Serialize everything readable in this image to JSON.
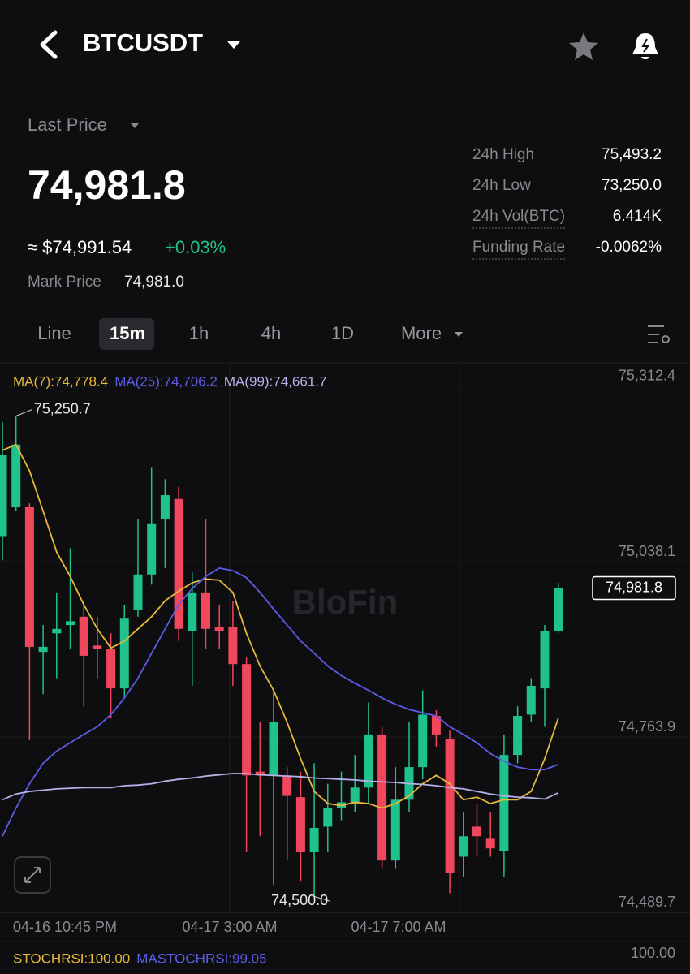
{
  "header": {
    "symbol": "BTCUSDT"
  },
  "price_panel": {
    "last_price_label": "Last Price",
    "last_price": "74,981.8",
    "usd_price": "≈ $74,991.54",
    "change": "+0.03%",
    "mark_price_label": "Mark Price",
    "mark_price": "74,981.0",
    "stats": [
      {
        "label": "24h High",
        "value": "75,493.2"
      },
      {
        "label": "24h Low",
        "value": "73,250.0"
      },
      {
        "label": "24h Vol(BTC)",
        "value": "6.414K"
      },
      {
        "label": "Funding Rate",
        "value": "-0.0062%"
      }
    ]
  },
  "tabs": [
    "Line",
    "15m",
    "1h",
    "4h",
    "1D",
    "More"
  ],
  "watermark": "BloFin",
  "chart_data": {
    "type": "candlestick",
    "up_color": "#1fc28b",
    "down_color": "#f0475c",
    "open": [
      75063,
      75108,
      75108,
      74882,
      74911,
      74924,
      74937,
      74892,
      74886,
      74825,
      74947,
      75003,
      75089,
      75121,
      74914,
      74975,
      74921,
      74921,
      74863,
      74695,
      74689,
      74689,
      74655,
      74569,
      74609,
      74638,
      74645,
      74670,
      74753,
      74556,
      74651,
      74702,
      74782,
      74746,
      74562,
      74609,
      74590,
      74571,
      74721,
      74784,
      74825,
      74914
    ],
    "high": [
      75241,
      75250.7,
      75114,
      74924,
      74975,
      75044,
      74962,
      74937,
      74911,
      74956,
      75089,
      75171,
      75152,
      75140,
      75006,
      75089,
      74956,
      74962,
      74873,
      74772,
      74822,
      74702,
      74695,
      74708,
      74676,
      74695,
      74721,
      74803,
      74765,
      74702,
      74772,
      74822,
      74791,
      74759,
      74632,
      74645,
      74632,
      74753,
      74797,
      74841,
      74924,
      74990
    ],
    "low": [
      75025,
      75102,
      74744,
      74816,
      74841,
      74886,
      74797,
      74841,
      74778,
      74810,
      74937,
      74987,
      75013,
      74899,
      74829,
      74886,
      74886,
      74829,
      74569,
      74594,
      74518,
      74556,
      74524,
      74500.0,
      74569,
      74619,
      74632,
      74645,
      74543,
      74543,
      74632,
      74683,
      74734,
      74505,
      74531,
      74562,
      74562,
      74531,
      74708,
      74772,
      74765,
      74911
    ],
    "close": [
      75190,
      75206,
      74890,
      74890,
      74918,
      74930,
      74876,
      74886,
      74825,
      74934,
      75003,
      75083,
      75127,
      74918,
      74975,
      74918,
      74914,
      74863,
      74689,
      74689,
      74772,
      74657,
      74569,
      74607,
      74638,
      74647,
      74670,
      74753,
      74556,
      74651,
      74702,
      74784,
      74753,
      74537,
      74594,
      74594,
      74575,
      74721,
      74782,
      74829,
      74914,
      74981.8
    ],
    "lines": [
      {
        "legend_label": "MA(7):74,778.4",
        "color": "#e6b93a",
        "values": [
          75197,
          75206,
          75165,
          75102,
          75038,
          75000,
          74956,
          74918,
          74888,
          74899,
          74918,
          74937,
          74962,
          74977,
          74990,
          74996,
          74994,
          74975,
          74911,
          74860,
          74822,
          74772,
          74715,
          74664,
          74645,
          74642,
          74647,
          74645,
          74638,
          74645,
          74657,
          74676,
          74689,
          74676,
          74651,
          74655,
          74645,
          74651,
          74651,
          74664,
          74715,
          74778.4
        ]
      },
      {
        "legend_label": "MA(25):74,706.2",
        "color": "#5b5ce8",
        "values": [
          74594,
          74638,
          74676,
          74708,
          74727,
          74740,
          74753,
          74765,
          74784,
          74810,
          74841,
          74880,
          74918,
          74956,
          74981,
          75000,
          75013,
          75009,
          74998,
          74975,
          74949,
          74924,
          74899,
          74880,
          74860,
          74845,
          74833,
          74822,
          74810,
          74800,
          74792,
          74787,
          74782,
          74765,
          74753,
          74740,
          74723,
          74711,
          74702,
          74698,
          74698,
          74706.2
        ]
      },
      {
        "legend_label": "MA(99):74,661.7",
        "color": "#b5b0e6",
        "values": [
          74651,
          74660,
          74664,
          74666,
          74668,
          74669,
          74670,
          74670,
          74670,
          74673,
          74674,
          74676,
          74680,
          74683,
          74685,
          74688,
          74690,
          74692,
          74692,
          74690,
          74689,
          74688,
          74687,
          74685,
          74684,
          74683,
          74682,
          74680,
          74679,
          74678,
          74676,
          74675,
          74673,
          74670,
          74668,
          74664,
          74660,
          74657,
          74655,
          74654,
          74652,
          74661.7
        ]
      }
    ],
    "ylim": [
      74470,
      75330
    ],
    "yticks": [
      {
        "value": 74489.7,
        "label": "74,489.7"
      },
      {
        "value": 74763.9,
        "label": "74,763.9"
      },
      {
        "value": 75038.1,
        "label": "75,038.1"
      },
      {
        "value": 75312.4,
        "label": "75,312.4"
      }
    ],
    "grid": true,
    "x_labels": [
      "04-16 10:45 PM",
      "04-17 3:00 AM",
      "04-17 7:00 AM"
    ],
    "annotations": [
      {
        "value": 75250.7,
        "label": "75,250.7"
      },
      {
        "value": 74500.0,
        "label": "74,500.0"
      }
    ],
    "price_tag": {
      "value": 74981.8,
      "label": "74,981.8"
    },
    "indicator": {
      "stochrsi": "STOCHRSI:100.00",
      "mastochrsi": "MASTOCHRSI:99.05",
      "axis_label": "100.00"
    }
  }
}
